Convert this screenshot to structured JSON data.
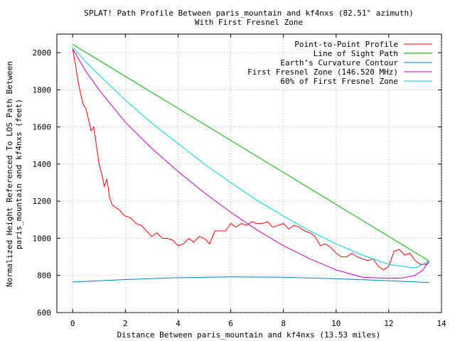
{
  "chart_data": {
    "type": "line",
    "title_lines": [
      "SPLAT! Path Profile Between paris_mountain and kf4nxs (82.51° azimuth)",
      "With First Fresnel Zone"
    ],
    "xlabel": "Distance Between paris_mountain and kf4nxs (13.53 miles)",
    "ylabel_lines": [
      "Normalized Height Referenced To LOS Path Between",
      "paris_mountain and kf4nxs (feet)"
    ],
    "xlim": [
      -0.6,
      14
    ],
    "ylim": [
      600,
      2100
    ],
    "x_ticks": [
      0,
      2,
      4,
      6,
      8,
      10,
      12,
      14
    ],
    "y_ticks": [
      600,
      800,
      1000,
      1200,
      1400,
      1600,
      1800,
      2000
    ],
    "grid": true,
    "legend_position": "top-right",
    "series": [
      {
        "name": "Point-to-Point Profile",
        "color": "#ff0000",
        "x": [
          0,
          0.1,
          0.2,
          0.3,
          0.4,
          0.5,
          0.6,
          0.7,
          0.8,
          0.9,
          1.0,
          1.1,
          1.2,
          1.3,
          1.4,
          1.5,
          1.6,
          1.7,
          1.8,
          1.9,
          2.0,
          2.2,
          2.4,
          2.6,
          2.8,
          3.0,
          3.2,
          3.4,
          3.6,
          3.8,
          4.0,
          4.2,
          4.4,
          4.6,
          4.8,
          5.0,
          5.2,
          5.4,
          5.6,
          5.8,
          6.0,
          6.2,
          6.4,
          6.6,
          6.8,
          7.0,
          7.2,
          7.4,
          7.6,
          7.8,
          8.0,
          8.2,
          8.4,
          8.6,
          8.8,
          9.0,
          9.2,
          9.4,
          9.6,
          9.8,
          10.0,
          10.2,
          10.4,
          10.6,
          10.8,
          11.0,
          11.2,
          11.4,
          11.6,
          11.8,
          12.0,
          12.2,
          12.4,
          12.6,
          12.8,
          13.0,
          13.2,
          13.4,
          13.53
        ],
        "y": [
          2020,
          1940,
          1850,
          1780,
          1720,
          1700,
          1640,
          1580,
          1600,
          1500,
          1400,
          1350,
          1280,
          1320,
          1220,
          1180,
          1170,
          1160,
          1150,
          1130,
          1120,
          1110,
          1080,
          1070,
          1040,
          1010,
          1030,
          1000,
          1000,
          990,
          960,
          970,
          1000,
          980,
          1010,
          1000,
          970,
          1040,
          1040,
          1040,
          1080,
          1060,
          1080,
          1070,
          1090,
          1080,
          1080,
          1090,
          1060,
          1070,
          1080,
          1050,
          1070,
          1060,
          1040,
          1030,
          1010,
          960,
          970,
          950,
          920,
          900,
          900,
          920,
          900,
          890,
          880,
          890,
          850,
          830,
          850,
          930,
          940,
          910,
          920,
          880,
          860,
          860,
          870
        ]
      },
      {
        "name": "Line of Sight Path",
        "color": "#00b000",
        "x": [
          0,
          13.53
        ],
        "y": [
          2045,
          878
        ]
      },
      {
        "name": "Earth’s Curvature Contour",
        "color": "#0080c0",
        "x": [
          0,
          2,
          4,
          6,
          8,
          10,
          12,
          13.53
        ],
        "y": [
          765,
          778,
          788,
          792,
          790,
          782,
          772,
          762
        ]
      },
      {
        "name": "First Fresnel Zone (146.520 MHz)",
        "color": "#c000c0",
        "x": [
          0,
          0.5,
          1,
          2,
          3,
          4,
          5,
          6,
          7,
          8,
          9,
          10,
          11,
          12,
          12.5,
          13,
          13.3,
          13.53
        ],
        "y": [
          2020,
          1900,
          1800,
          1625,
          1485,
          1360,
          1245,
          1140,
          1045,
          960,
          890,
          830,
          790,
          785,
          786,
          800,
          830,
          878
        ]
      },
      {
        "name": "60% of First Fresnel Zone",
        "color": "#00d0e0",
        "x": [
          0,
          0.5,
          1,
          2,
          3,
          4,
          5,
          6,
          7,
          8,
          9,
          10,
          11,
          12,
          13,
          13.53
        ],
        "y": [
          2030,
          1950,
          1880,
          1745,
          1620,
          1510,
          1400,
          1300,
          1205,
          1120,
          1040,
          970,
          910,
          860,
          840,
          878
        ]
      }
    ]
  }
}
